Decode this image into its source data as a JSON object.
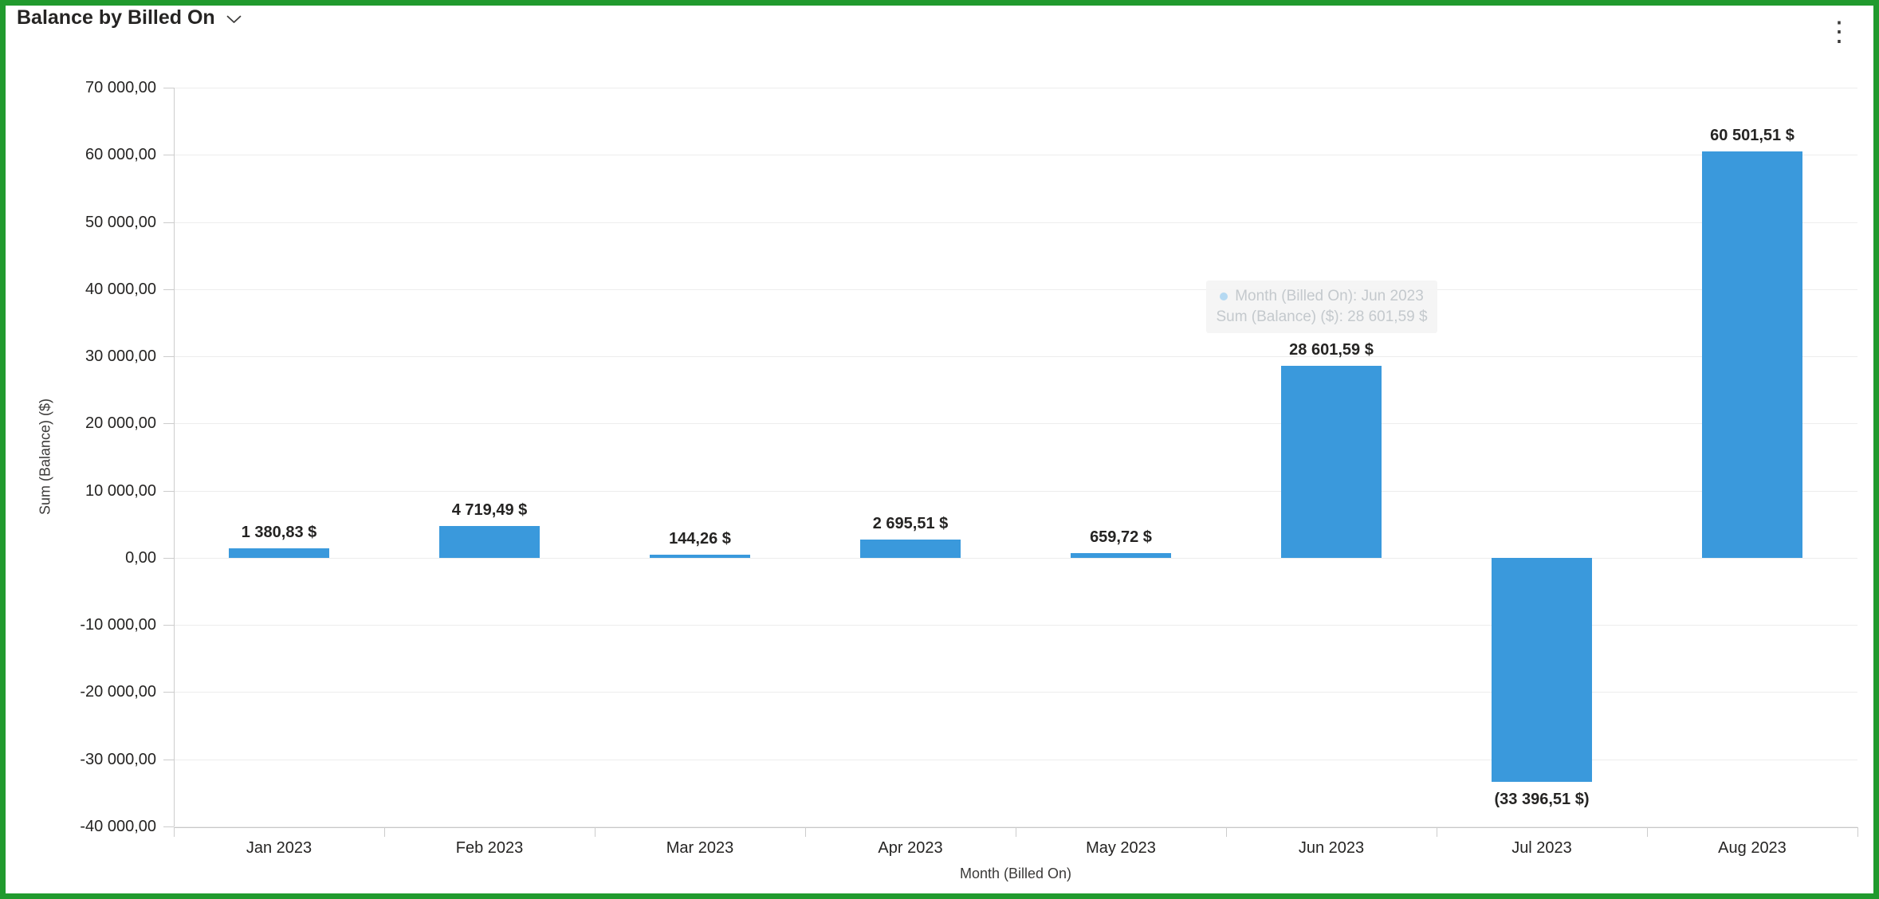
{
  "header": {
    "title": "Balance by Billed On"
  },
  "icons": {
    "chevron_down": "chevron-down",
    "more_options": "⋮"
  },
  "colors": {
    "bar": "#3a99dc",
    "frame_border": "#219a2e",
    "tooltip_marker": "#b5d9f2"
  },
  "chart_data": {
    "type": "bar",
    "title": "Balance by Billed On",
    "categories": [
      "Jan 2023",
      "Feb 2023",
      "Mar 2023",
      "Apr 2023",
      "May 2023",
      "Jun 2023",
      "Jul 2023",
      "Aug 2023"
    ],
    "values": [
      1380.83,
      4719.49,
      144.26,
      2695.51,
      659.72,
      28601.59,
      -33396.51,
      60501.51
    ],
    "data_labels": [
      "1 380,83 $",
      "4 719,49 $",
      "144,26 $",
      "2 695,51 $",
      "659,72 $",
      "28 601,59 $",
      "(33 396,51 $)",
      "60 501,51 $"
    ],
    "xlabel": "Month (Billed On)",
    "ylabel": "Sum (Balance) ($)",
    "ylim": [
      -40000,
      70000
    ],
    "ytick_step": 10000,
    "ytick_labels": [
      "70 000,00",
      "60 000,00",
      "50 000,00",
      "40 000,00",
      "30 000,00",
      "20 000,00",
      "10 000,00",
      "0,00",
      "-10 000,00",
      "-20 000,00",
      "-30 000,00",
      "-40 000,00"
    ],
    "grid": true,
    "legend_position": "none"
  },
  "tooltip": {
    "line1": "Month (Billed On): Jun 2023",
    "line2": "Sum (Balance) ($): 28 601,59 $"
  }
}
